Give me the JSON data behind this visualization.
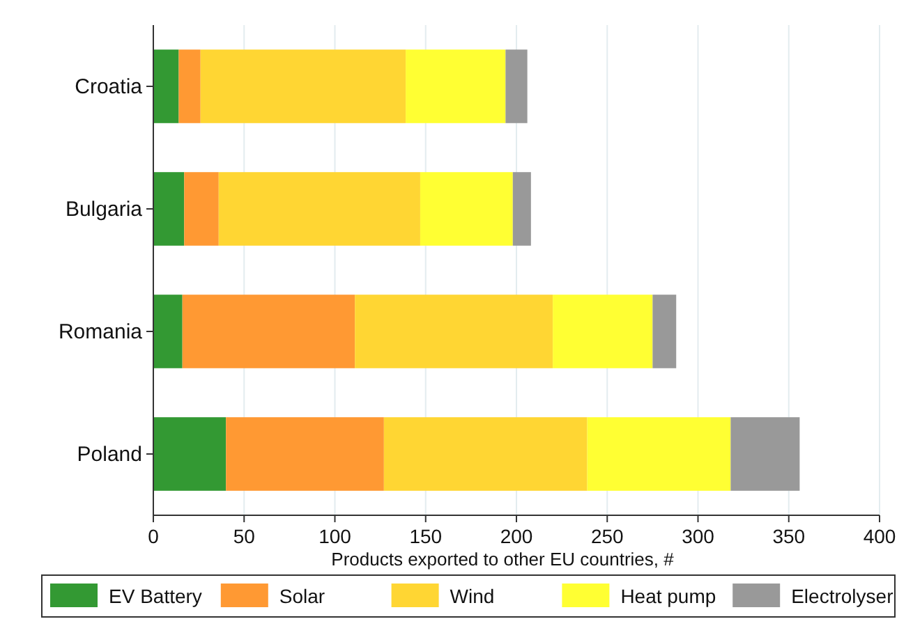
{
  "chart_data": {
    "type": "bar",
    "orientation": "horizontal",
    "stacked": true,
    "xlabel": "Products exported to other EU countries, #",
    "categories": [
      "Croatia",
      "Bulgaria",
      "Romania",
      "Poland"
    ],
    "series": [
      {
        "name": "EV Battery",
        "color": "#339933",
        "values": [
          14,
          17,
          16,
          40
        ]
      },
      {
        "name": "Solar",
        "color": "#ff9933",
        "values": [
          12,
          19,
          95,
          87
        ]
      },
      {
        "name": "Wind",
        "color": "#ffd633",
        "values": [
          113,
          111,
          109,
          112
        ]
      },
      {
        "name": "Heat pump",
        "color": "#ffff33",
        "values": [
          55,
          51,
          55,
          79
        ]
      },
      {
        "name": "Electrolyser",
        "color": "#999999",
        "values": [
          12,
          10,
          13,
          38
        ]
      }
    ],
    "xlim": [
      0,
      400
    ],
    "xticks": [
      0,
      50,
      100,
      150,
      200,
      250,
      300,
      350,
      400
    ],
    "grid": "x",
    "legend": "bottom"
  }
}
